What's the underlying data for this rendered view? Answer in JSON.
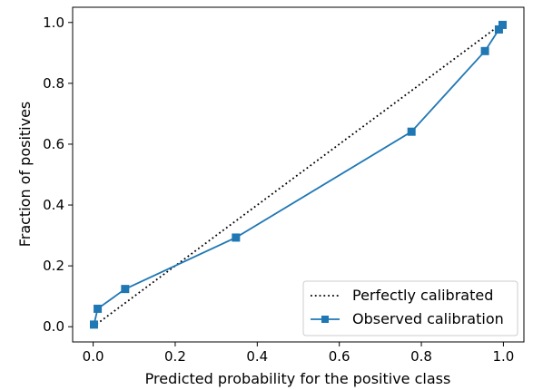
{
  "chart_data": {
    "type": "line",
    "title": "",
    "xlabel": "Predicted probability for the positive class",
    "ylabel": "Fraction of positives",
    "xlim": [
      -0.05,
      1.05
    ],
    "ylim": [
      -0.05,
      1.05
    ],
    "xticks": [
      0.0,
      0.2,
      0.4,
      0.6,
      0.8,
      1.0
    ],
    "yticks": [
      0.0,
      0.2,
      0.4,
      0.6,
      0.8,
      1.0
    ],
    "xtick_labels": [
      "0.0",
      "0.2",
      "0.4",
      "0.6",
      "0.8",
      "1.0"
    ],
    "ytick_labels": [
      "0.0",
      "0.2",
      "0.4",
      "0.6",
      "0.8",
      "1.0"
    ],
    "grid": false,
    "legend_position": "lower-right",
    "series": [
      {
        "name": "Perfectly calibrated",
        "style": "dotted",
        "color": "#000000",
        "marker": "none",
        "x": [
          0,
          1
        ],
        "y": [
          0,
          1
        ]
      },
      {
        "name": "Observed calibration",
        "style": "solid",
        "color": "#1f77b4",
        "marker": "square",
        "x": [
          0.002,
          0.011,
          0.078,
          0.348,
          0.776,
          0.955,
          0.989,
          0.998
        ],
        "y": [
          0.007,
          0.059,
          0.124,
          0.293,
          0.641,
          0.906,
          0.977,
          0.992
        ]
      }
    ]
  }
}
